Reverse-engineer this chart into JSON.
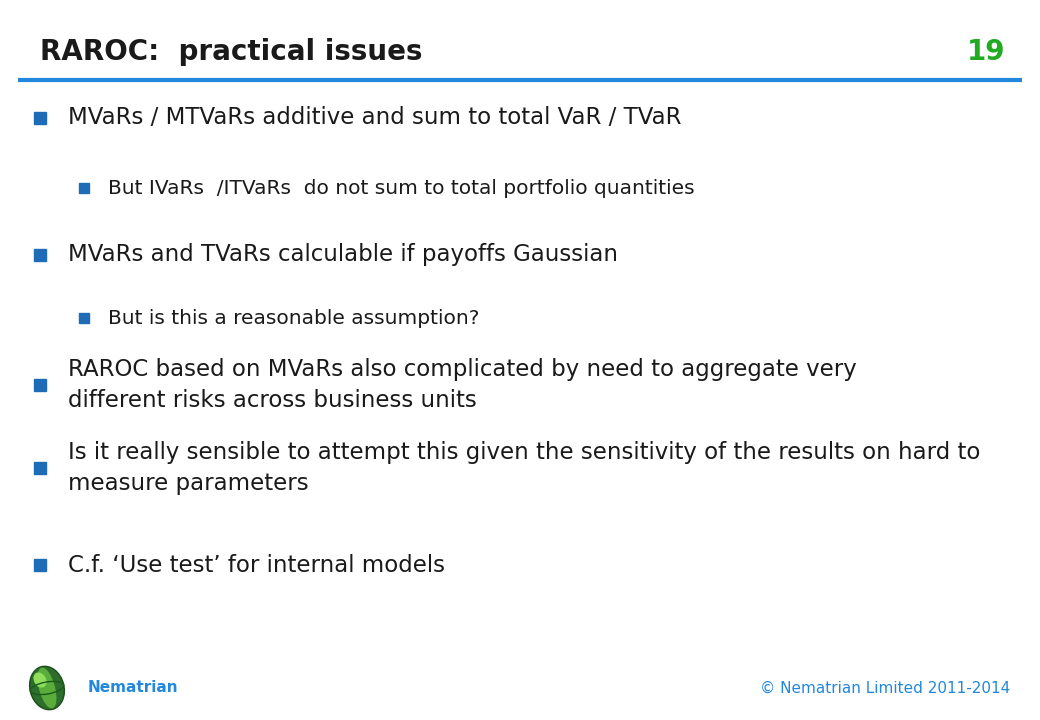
{
  "title": "RAROC:  practical issues",
  "slide_number": "19",
  "title_color": "#1a1a1a",
  "title_fontsize": 20,
  "slide_number_color": "#22aa22",
  "line_color": "#2288dd",
  "background_color": "#ffffff",
  "bullet_color": "#1e6bb8",
  "sub_bullet_color": "#1e6bb8",
  "bullet_text_color": "#1a1a1a",
  "footer_text_color": "#2288dd",
  "footer_left": "Nematrian",
  "footer_right": "© Nematrian Limited 2011-2014",
  "bullets": [
    {
      "level": 1,
      "text": "MVaRs / MTVaRs additive and sum to total VaR / TVaR"
    },
    {
      "level": 2,
      "text": "But IVaRs  /ITVaRs  do not sum to total portfolio quantities"
    },
    {
      "level": 1,
      "text": "MVaRs and TVaRs calculable if payoffs Gaussian"
    },
    {
      "level": 2,
      "text": "But is this a reasonable assumption?"
    },
    {
      "level": 1,
      "text": "RAROC based on MVaRs also complicated by need to aggregate very\ndifferent risks across business units"
    },
    {
      "level": 1,
      "text": "Is it really sensible to attempt this given the sensitivity of the results on hard to\nmeasure parameters"
    },
    {
      "level": 1,
      "text": "C.f. ‘Use test’ for internal models"
    }
  ]
}
